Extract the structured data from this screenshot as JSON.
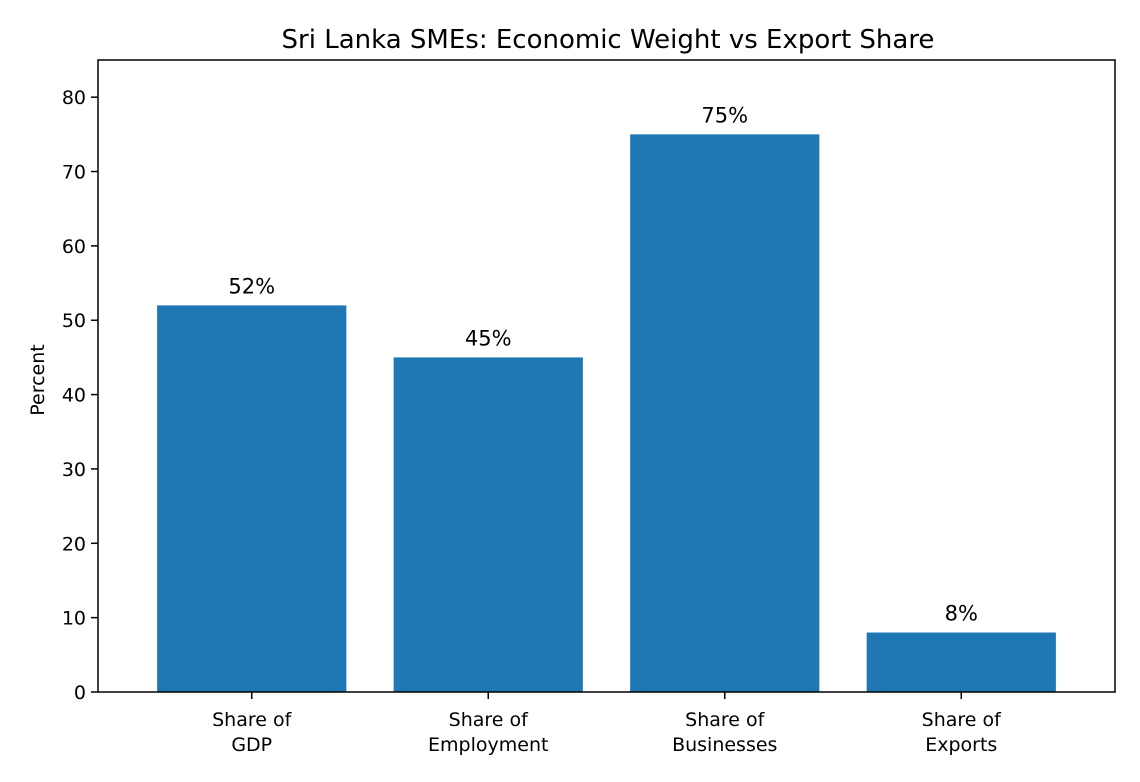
{
  "chart_data": {
    "type": "bar",
    "title": "Sri Lanka SMEs: Economic Weight vs Export Share",
    "xlabel": "",
    "ylabel": "Percent",
    "categories": [
      [
        "Share of",
        "GDP"
      ],
      [
        "Share of",
        "Employment"
      ],
      [
        "Share of",
        "Businesses"
      ],
      [
        "Share of",
        "Exports"
      ]
    ],
    "values": [
      52,
      45,
      75,
      8
    ],
    "data_labels": [
      "52%",
      "45%",
      "75%",
      "8%"
    ],
    "ylim": [
      0,
      85
    ],
    "yticks": [
      0,
      10,
      20,
      30,
      40,
      50,
      60,
      70,
      80
    ],
    "grid": false,
    "bar_color": "#1f77b4"
  }
}
